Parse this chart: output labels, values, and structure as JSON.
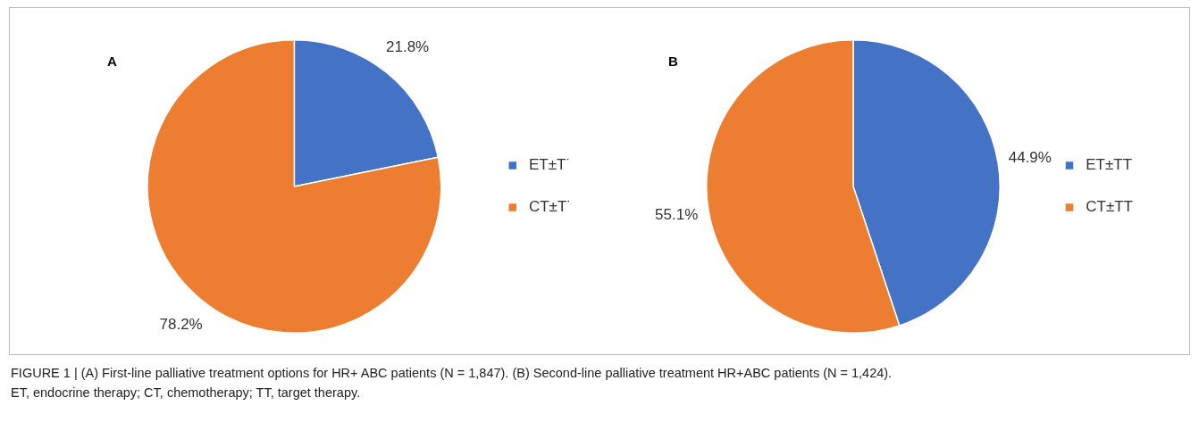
{
  "chart_data": [
    {
      "type": "pie",
      "title": "A",
      "categories": [
        "ET±T˙",
        "CT±T˙"
      ],
      "values": [
        21.8,
        78.2
      ],
      "colors": [
        "#4472c4",
        "#ed7d31"
      ],
      "value_labels": [
        "21.8%",
        "78.2%"
      ],
      "legend": "right",
      "annotations": [
        "FIGURE 1 | (A) First-line palliative treatment options for HR+ ABC patients (N = 1,847). (B) Second-line palliative treatment HR+ABC patients (N = 1,424).",
        "ET, endocrine therapy; CT, chemotherapy; TT, target therapy."
      ]
    },
    {
      "type": "pie",
      "title": "B",
      "categories": [
        "ET±TT",
        "CT±TT"
      ],
      "values": [
        44.9,
        55.1
      ],
      "colors": [
        "#4472c4",
        "#ed7d31"
      ],
      "value_labels": [
        "44.9%",
        "55.1%"
      ],
      "legend": "right"
    }
  ]
}
